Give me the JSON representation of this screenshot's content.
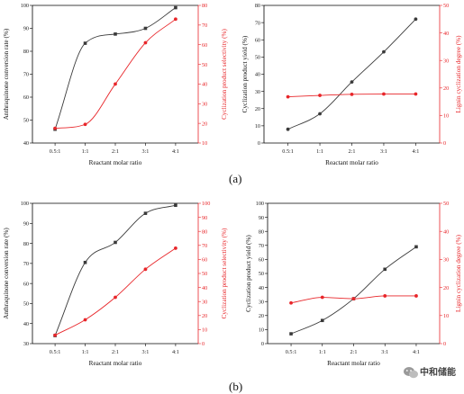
{
  "panel_labels": {
    "a": "(a)",
    "b": "(b)"
  },
  "watermark": {
    "text": "中和储能"
  },
  "colors": {
    "left_series": "#3a3a3a",
    "right_series": "#e8262a"
  },
  "chart_data": [
    {
      "id": "a-left",
      "type": "line",
      "categories": [
        "0.5:1",
        "1:1",
        "2:1",
        "3:1",
        "4:1"
      ],
      "xlabel": "Reactant molar ratio",
      "ylabel": "Anthraquinone conversion rate (%)",
      "ylabel_right": "Cyclization product selectivity (%)",
      "ylim": [
        40,
        100
      ],
      "yticks": [
        40,
        50,
        60,
        70,
        80,
        90,
        100
      ],
      "ylim_right": [
        10,
        80
      ],
      "yticks_right": [
        10,
        20,
        30,
        40,
        50,
        60,
        70,
        80
      ],
      "series": [
        {
          "axis": "left",
          "marker": "square",
          "color": "#3a3a3a",
          "values": [
            46,
            83.5,
            87.5,
            90,
            99
          ]
        },
        {
          "axis": "right",
          "marker": "circle",
          "color": "#e8262a",
          "values": [
            17.5,
            19.5,
            40,
            61,
            73
          ]
        }
      ]
    },
    {
      "id": "a-right",
      "type": "line",
      "categories": [
        "0.5:1",
        "1:1",
        "2:1",
        "3:1",
        "4:1"
      ],
      "xlabel": "Reactant molar ratio",
      "ylabel": "Cyclization product yield (%)",
      "ylabel_right": "Lignin cyclization degree (%)",
      "ylim": [
        0,
        80
      ],
      "yticks": [
        0,
        10,
        20,
        30,
        40,
        50,
        60,
        70,
        80
      ],
      "ylim_right": [
        0,
        50
      ],
      "yticks_right": [
        0,
        10,
        20,
        30,
        40,
        50
      ],
      "series": [
        {
          "axis": "left",
          "marker": "circle",
          "color": "#3a3a3a",
          "values": [
            8,
            17,
            35.5,
            53,
            72
          ]
        },
        {
          "axis": "right",
          "marker": "circle",
          "color": "#e8262a",
          "values": [
            16.8,
            17.3,
            17.7,
            17.8,
            17.8
          ]
        }
      ]
    },
    {
      "id": "b-left",
      "type": "line",
      "categories": [
        "0.5:1",
        "1:1",
        "2:1",
        "3:1",
        "4:1"
      ],
      "xlabel": "Reactant molar ratio",
      "ylabel": "Anthraquinone conversion rate (%)",
      "ylabel_right": "Cyclization product selectivity (%)",
      "ylim": [
        30,
        100
      ],
      "yticks": [
        30,
        40,
        50,
        60,
        70,
        80,
        90,
        100
      ],
      "ylim_right": [
        0,
        100
      ],
      "yticks_right": [
        0,
        10,
        20,
        30,
        40,
        50,
        60,
        70,
        80,
        90,
        100
      ],
      "series": [
        {
          "axis": "left",
          "marker": "square",
          "color": "#3a3a3a",
          "values": [
            34,
            70.5,
            80.5,
            95,
            99
          ]
        },
        {
          "axis": "right",
          "marker": "circle",
          "color": "#e8262a",
          "values": [
            6,
            17,
            33,
            53,
            68
          ]
        }
      ]
    },
    {
      "id": "b-right",
      "type": "line",
      "categories": [
        "0.5:1",
        "1:1",
        "2:1",
        "3:1",
        "4:1"
      ],
      "xlabel": "Reactant molar ratio",
      "ylabel": "Cyclization product yield (%)",
      "ylabel_right": "Lignin cyclization degree (%)",
      "ylim": [
        0,
        100
      ],
      "yticks": [
        0,
        10,
        20,
        30,
        40,
        50,
        60,
        70,
        80,
        90,
        100
      ],
      "ylim_right": [
        0,
        50
      ],
      "yticks_right": [
        0,
        10,
        20,
        30,
        40,
        50
      ],
      "series": [
        {
          "axis": "left",
          "marker": "square",
          "color": "#3a3a3a",
          "values": [
            7,
            16.5,
            32,
            53,
            69
          ]
        },
        {
          "axis": "right",
          "marker": "circle",
          "color": "#e8262a",
          "values": [
            14.5,
            16.5,
            16,
            17,
            17
          ]
        }
      ]
    }
  ]
}
